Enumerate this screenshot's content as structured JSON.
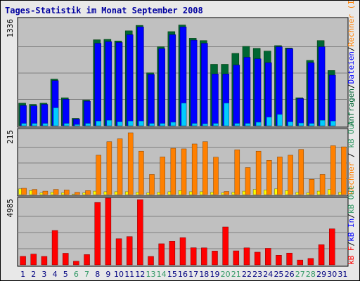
{
  "chart_data": {
    "type": "bar",
    "title": "Tages-Statistik im Monat September 2008",
    "colors": {
      "title": "#0000a0",
      "panel_bg": "#c0c0c0",
      "anfragen": "#006633",
      "dateien": "#0000ff",
      "rechner": "#00ccff",
      "besuche": "#ff8000",
      "kb_out": "#ffff00",
      "kb_in": "#ff0000",
      "weekend_label": "#339966"
    },
    "days": [
      "1",
      "2",
      "3",
      "4",
      "5",
      "6",
      "7",
      "8",
      "9",
      "10",
      "11",
      "12",
      "13",
      "14",
      "15",
      "16",
      "17",
      "18",
      "19",
      "20",
      "21",
      "22",
      "23",
      "24",
      "25",
      "26",
      "27",
      "28",
      "29",
      "30",
      "31"
    ],
    "weekend_days": [
      "6",
      "7",
      "13",
      "14",
      "20",
      "21",
      "27",
      "28"
    ],
    "panels": [
      {
        "id": "requests",
        "ymax_label": "1336",
        "ymax": 1336,
        "right_label": "Anfragen / Dateien / Rechner",
        "right_label_parts": [
          {
            "text": "Anfragen",
            "color": "#006633"
          },
          {
            "text": "/",
            "color": "#000000"
          },
          {
            "text": "Dateien",
            "color": "#0000ff"
          },
          {
            "text": "/",
            "color": "#000000"
          },
          {
            "text": "Rechner (IP-Adressen)",
            "color": "#ff8000"
          }
        ],
        "series": [
          {
            "name": "Anfragen",
            "values": [
              290,
              275,
              290,
              600,
              360,
              95,
              330,
              1105,
              1110,
              1090,
              1220,
              1290,
              680,
              1015,
              1210,
              1295,
              1125,
              1095,
              790,
              790,
              930,
              1020,
              995,
              960,
              1030,
              1000,
              360,
              840,
              1095,
              710,
              0
            ]
          },
          {
            "name": "Dateien",
            "values": [
              260,
              255,
              275,
              580,
              340,
              85,
              315,
              1060,
              1080,
              1070,
              1170,
              1270,
              660,
              990,
              1170,
              1270,
              1100,
              1060,
              665,
              665,
              780,
              880,
              860,
              810,
              1015,
              990,
              350,
              810,
              1015,
              650,
              0
            ]
          },
          {
            "name": "Rechner",
            "values": [
              30,
              30,
              30,
              230,
              30,
              15,
              30,
              60,
              70,
              50,
              60,
              60,
              30,
              30,
              45,
              290,
              30,
              25,
              30,
              290,
              30,
              30,
              45,
              110,
              145,
              50,
              35,
              30,
              70,
              60,
              0
            ]
          }
        ]
      },
      {
        "id": "visits",
        "ymax_label": "215",
        "ymax": 215,
        "right_label": "Rechner / kB Out",
        "series": [
          {
            "name": "Besuche",
            "values": [
              22,
              18,
              12,
              18,
              16,
              8,
              14,
              137,
              184,
              194,
              215,
              151,
              70,
              131,
              161,
              159,
              176,
              184,
              130,
              11,
              156,
              94,
              151,
              119,
              131,
              137,
              157,
              53,
              70,
              170,
              166
            ]
          },
          {
            "name": "kB Out",
            "values": [
              20,
              14,
              6,
              8,
              6,
              2,
              6,
              12,
              10,
              10,
              10,
              8,
              6,
              8,
              10,
              14,
              10,
              10,
              8,
              6,
              8,
              12,
              18,
              16,
              20,
              14,
              8,
              6,
              12,
              18,
              8
            ]
          }
        ]
      },
      {
        "id": "traffic",
        "ymax_label": "4985",
        "ymax": 4985,
        "right_label": "kB F / kB In / kB Out",
        "right_label_parts": [
          {
            "text": "kB F",
            "color": "#ff0000"
          },
          {
            "text": "/",
            "color": "#000000"
          },
          {
            "text": "kB In",
            "color": "#0000ff"
          },
          {
            "text": "/",
            "color": "#000000"
          },
          {
            "text": "kB Out",
            "color": "#339966"
          }
        ],
        "series": [
          {
            "name": "kB F",
            "values": [
              670,
              850,
              665,
              2710,
              915,
              285,
              810,
              4920,
              5260,
              2060,
              2230,
              5140,
              665,
              1665,
              1865,
              2140,
              1350,
              1340,
              1090,
              2990,
              1105,
              1340,
              1000,
              1305,
              760,
              930,
              380,
              505,
              1590,
              2840,
              0
            ]
          }
        ]
      }
    ]
  }
}
